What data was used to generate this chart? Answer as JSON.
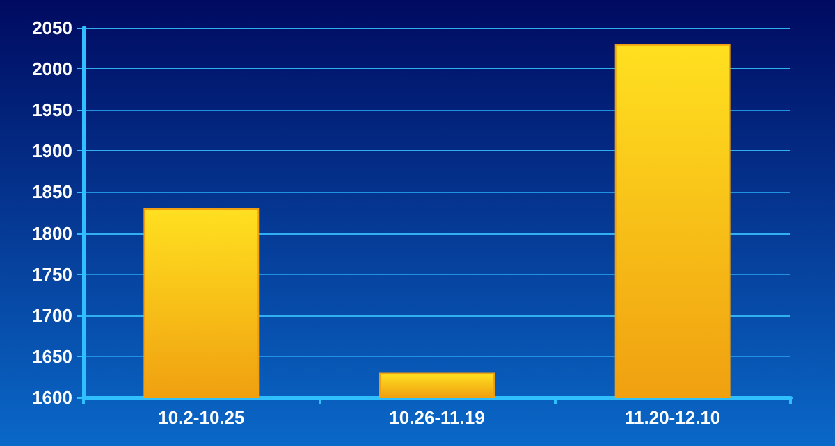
{
  "chart_data": {
    "type": "bar",
    "categories": [
      "10.2-10.25",
      "10.26-11.19",
      "11.20-12.10"
    ],
    "values": [
      1830,
      1630,
      2030
    ],
    "color": "#f0a010",
    "ylim": [
      1600,
      2050
    ],
    "yticks": [
      1600,
      1650,
      1700,
      1750,
      1800,
      1850,
      1900,
      1950,
      2000,
      2050
    ],
    "grid": "y"
  }
}
